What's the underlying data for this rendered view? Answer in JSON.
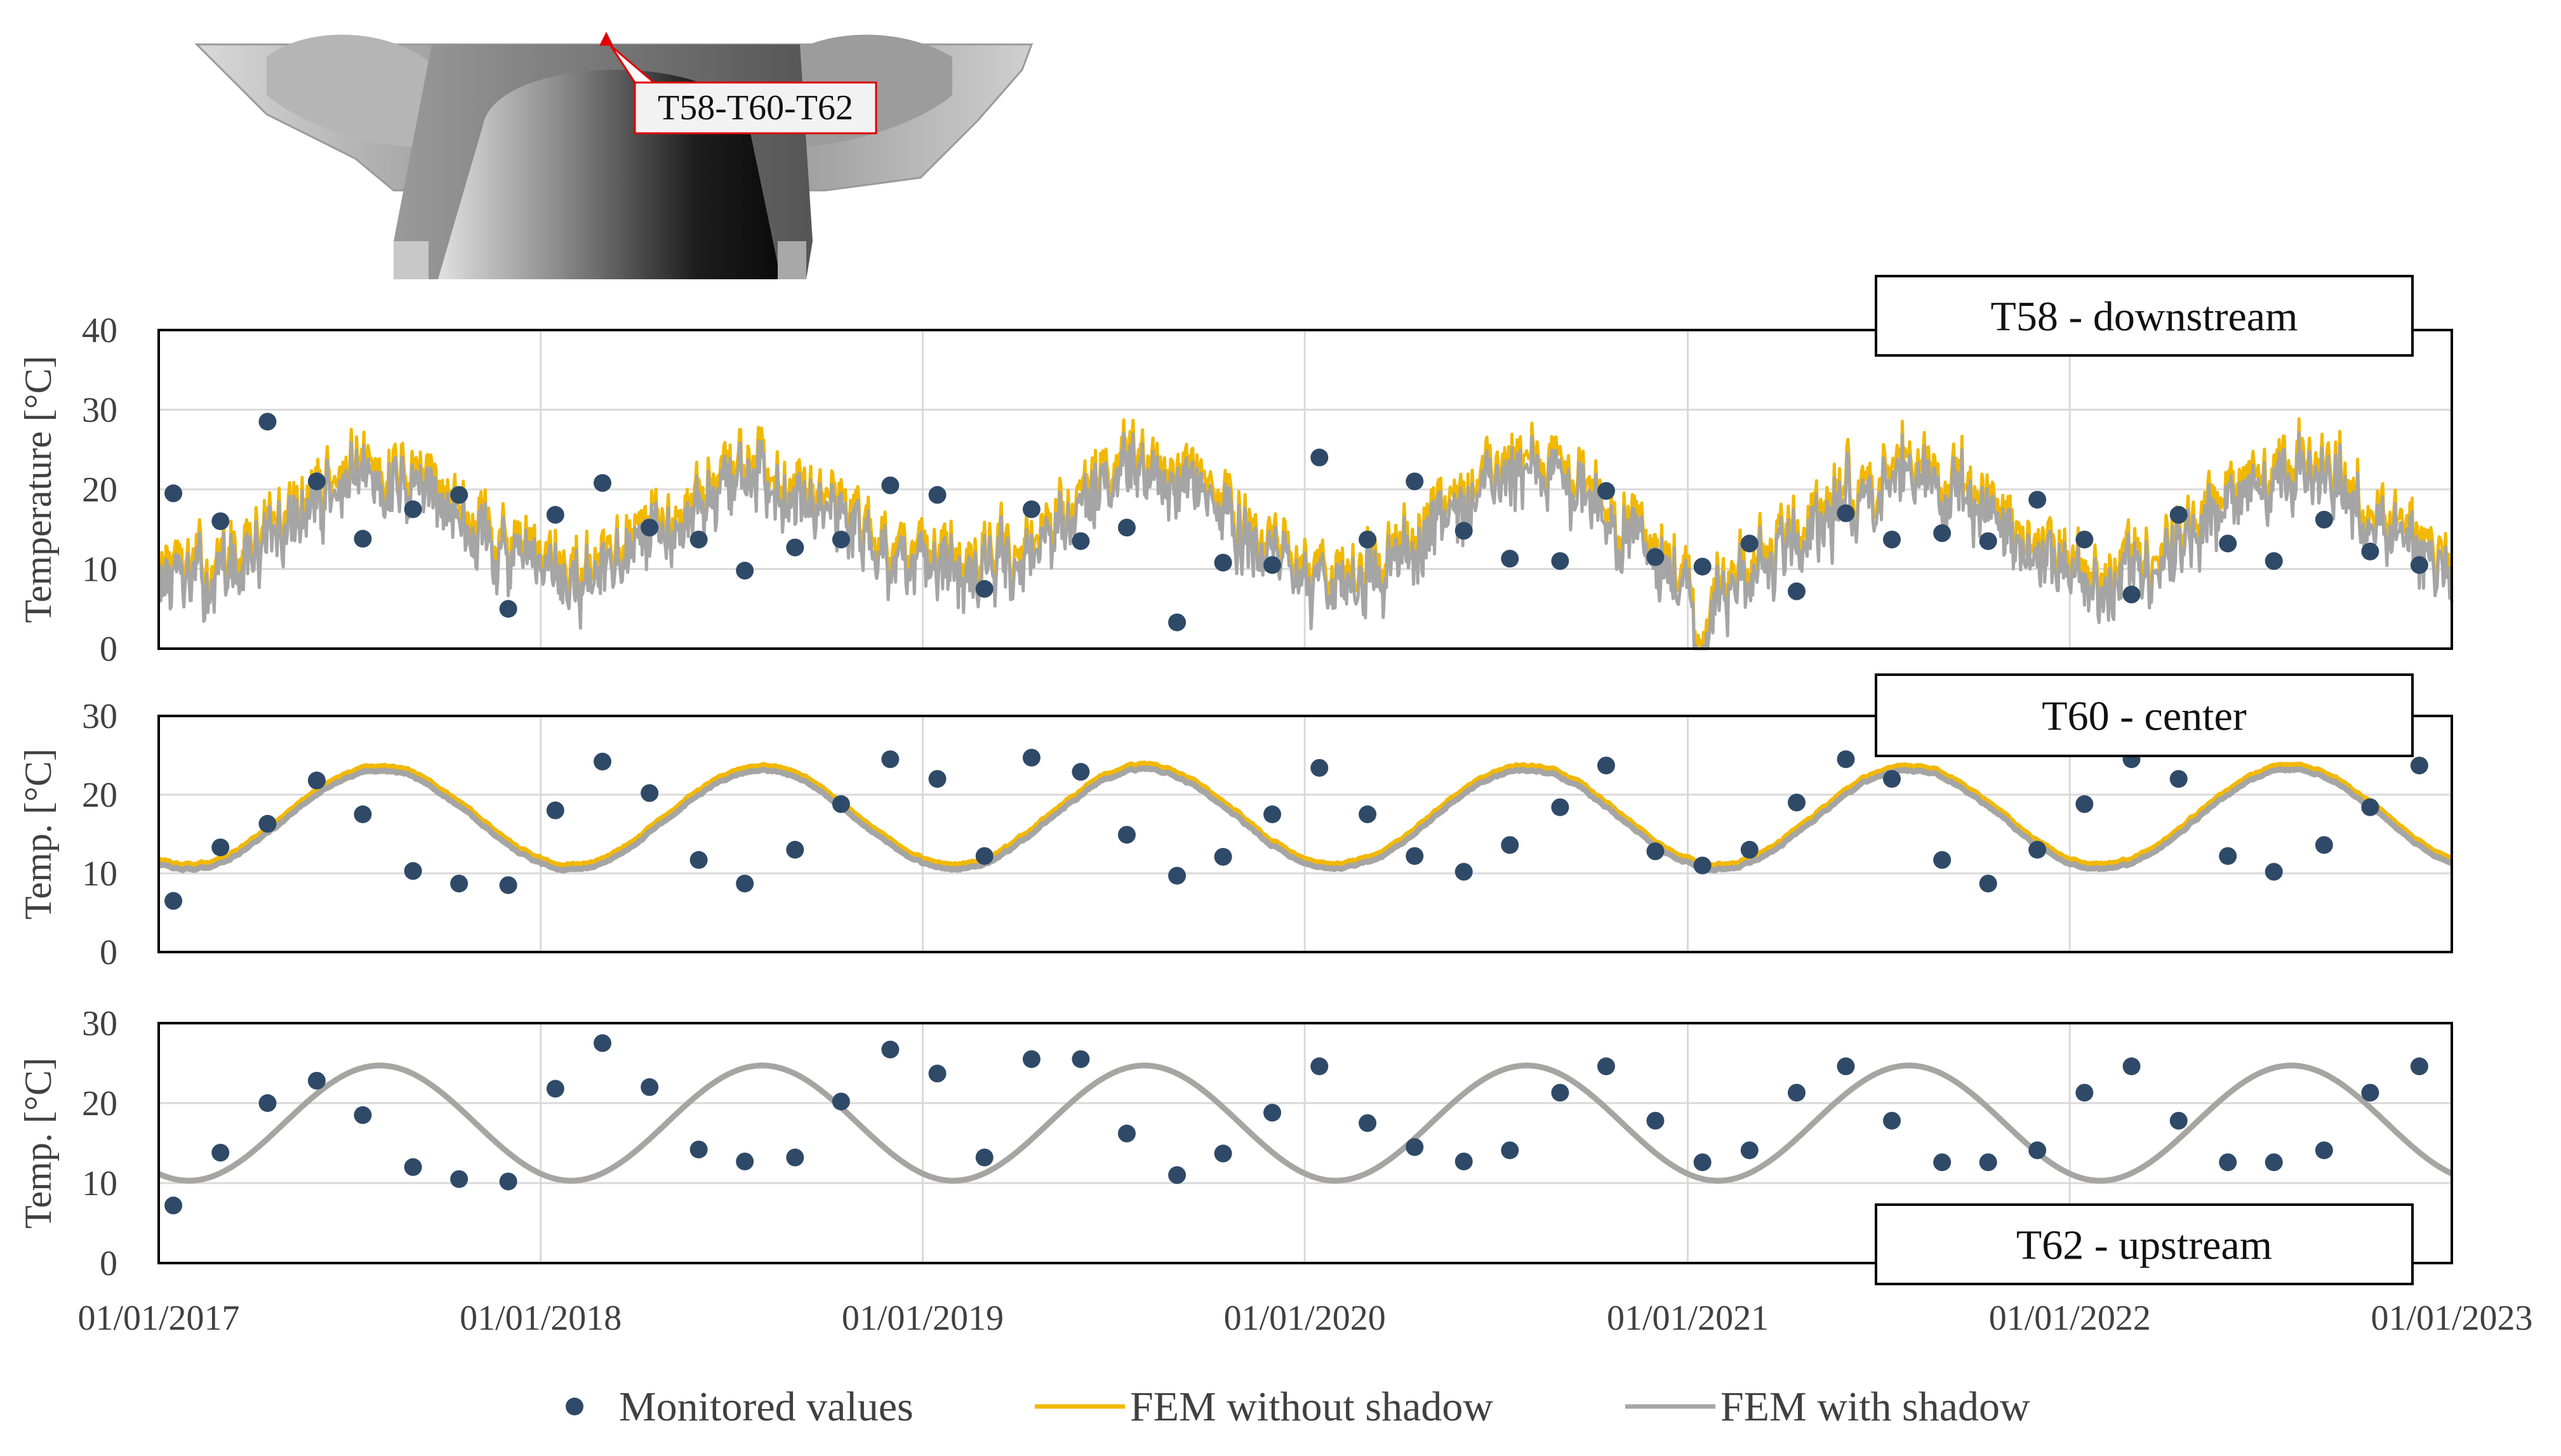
{
  "figure": {
    "inset": {
      "label": "T58-T60-T62",
      "marker_color": "#e00000"
    },
    "legend": [
      {
        "label": "Monitored values",
        "kind": "marker",
        "color": "#2f4a68"
      },
      {
        "label": "FEM without shadow",
        "kind": "line",
        "color": "#f2b800"
      },
      {
        "label": "FEM with shadow",
        "kind": "line",
        "color": "#a5a5a5"
      }
    ]
  },
  "chart_data": [
    {
      "type": "scatter",
      "title": "T58 - downstream",
      "ylabel": "Temperature [°C]",
      "xlabel": "",
      "ylim": [
        0,
        40
      ],
      "yticks": [
        0,
        10,
        20,
        30,
        40
      ],
      "xlim": [
        "01/01/2017",
        "01/01/2023"
      ],
      "xticks": [],
      "grid": true,
      "series": [
        {
          "name": "Monitored values",
          "x": [
            "2017-01-15",
            "2017-03-01",
            "2017-04-15",
            "2017-06-01",
            "2017-07-15",
            "2017-09-01",
            "2017-10-15",
            "2017-12-01",
            "2018-01-15",
            "2018-03-01",
            "2018-04-15",
            "2018-06-01",
            "2018-07-15",
            "2018-09-01",
            "2018-10-15",
            "2018-12-01",
            "2019-01-15",
            "2019-03-01",
            "2019-04-15",
            "2019-06-01",
            "2019-07-15",
            "2019-09-01",
            "2019-10-15",
            "2019-12-01",
            "2020-01-15",
            "2020-03-01",
            "2020-04-15",
            "2020-06-01",
            "2020-07-15",
            "2020-09-01",
            "2020-10-15",
            "2020-12-01",
            "2021-01-15",
            "2021-03-01",
            "2021-04-15",
            "2021-06-01",
            "2021-07-15",
            "2021-09-01",
            "2021-10-15",
            "2021-12-01",
            "2022-01-15",
            "2022-03-01",
            "2022-04-15",
            "2022-06-01",
            "2022-07-15",
            "2022-09-01",
            "2022-10-15",
            "2022-12-01"
          ],
          "y": [
            19.5,
            16.0,
            28.5,
            21.0,
            13.8,
            17.5,
            19.3,
            5.0,
            16.8,
            20.8,
            15.2,
            13.7,
            9.8,
            12.7,
            13.7,
            20.5,
            19.3,
            7.5,
            17.5,
            13.5,
            15.2,
            3.3,
            10.8,
            10.5,
            24.0,
            13.7,
            21.0,
            14.8,
            11.3,
            11.0,
            19.8,
            11.5,
            10.3,
            13.2,
            7.2,
            17.0,
            13.7,
            14.5,
            13.5,
            18.7,
            13.7,
            6.8,
            16.8,
            13.2,
            11.0,
            16.2,
            12.2,
            10.5
          ]
        },
        {
          "name": "FEM without shadow",
          "type": "line",
          "style": "daily",
          "mean": 15.5,
          "amplitude": 6.5,
          "noise": 6.0,
          "offset": 1.0,
          "min_day": "2021-01-15"
        },
        {
          "name": "FEM with shadow",
          "type": "line",
          "style": "daily",
          "mean": 14.8,
          "amplitude": 6.5,
          "noise": 6.0,
          "offset": 0,
          "min_day": "2021-01-15"
        }
      ]
    },
    {
      "type": "scatter",
      "title": "T60 - center",
      "ylabel": "Temp. [°C]",
      "xlabel": "",
      "ylim": [
        0,
        30
      ],
      "yticks": [
        0,
        10,
        20,
        30
      ],
      "xlim": [
        "01/01/2017",
        "01/01/2023"
      ],
      "xticks": [],
      "grid": true,
      "series": [
        {
          "name": "Monitored values",
          "x": [
            "2017-01-15",
            "2017-03-01",
            "2017-04-15",
            "2017-06-01",
            "2017-07-15",
            "2017-09-01",
            "2017-10-15",
            "2017-12-01",
            "2018-01-15",
            "2018-03-01",
            "2018-04-15",
            "2018-06-01",
            "2018-07-15",
            "2018-09-01",
            "2018-10-15",
            "2018-12-01",
            "2019-01-15",
            "2019-03-01",
            "2019-04-15",
            "2019-06-01",
            "2019-07-15",
            "2019-09-01",
            "2019-10-15",
            "2019-12-01",
            "2020-01-15",
            "2020-03-01",
            "2020-04-15",
            "2020-06-01",
            "2020-07-15",
            "2020-09-01",
            "2020-10-15",
            "2020-12-01",
            "2021-01-15",
            "2021-03-01",
            "2021-04-15",
            "2021-06-01",
            "2021-07-15",
            "2021-09-01",
            "2021-10-15",
            "2021-12-01",
            "2022-01-15",
            "2022-03-01",
            "2022-04-15",
            "2022-06-01",
            "2022-07-15",
            "2022-09-01",
            "2022-10-15",
            "2022-12-01"
          ],
          "y": [
            6.5,
            13.3,
            16.3,
            21.8,
            17.5,
            10.3,
            8.7,
            8.5,
            18.0,
            24.2,
            20.2,
            11.7,
            8.7,
            13.0,
            18.8,
            24.5,
            22.0,
            12.2,
            24.7,
            22.9,
            14.9,
            9.7,
            12.1,
            17.5,
            23.4,
            17.5,
            12.2,
            10.2,
            13.6,
            18.4,
            23.7,
            12.8,
            11.0,
            13.0,
            19.0,
            24.5,
            22.0,
            11.7,
            8.7,
            13.0,
            18.8,
            24.5,
            22.0,
            12.2,
            10.2,
            13.6,
            18.4,
            23.7
          ]
        },
        {
          "name": "FEM without shadow",
          "type": "line",
          "style": "smooth",
          "mean": 17.0,
          "amplitude": 6.3,
          "noise": 0.5,
          "offset": 0.4
        },
        {
          "name": "FEM with shadow",
          "type": "line",
          "style": "smooth",
          "mean": 16.8,
          "amplitude": 6.3,
          "noise": 0.5,
          "offset": 0
        }
      ]
    },
    {
      "type": "scatter",
      "title": "T62 - upstream",
      "ylabel": "Temp. [°C]",
      "xlabel": "",
      "ylim": [
        0,
        30
      ],
      "yticks": [
        0,
        10,
        20,
        30
      ],
      "xlim": [
        "01/01/2017",
        "01/01/2023"
      ],
      "xticks": [
        "01/01/2017",
        "01/01/2018",
        "01/01/2019",
        "01/01/2020",
        "01/01/2021",
        "01/01/2022",
        "01/01/2023"
      ],
      "grid": true,
      "series": [
        {
          "name": "Monitored values",
          "x": [
            "2017-01-15",
            "2017-03-01",
            "2017-04-15",
            "2017-06-01",
            "2017-07-15",
            "2017-09-01",
            "2017-10-15",
            "2017-12-01",
            "2018-01-15",
            "2018-03-01",
            "2018-04-15",
            "2018-06-01",
            "2018-07-15",
            "2018-09-01",
            "2018-10-15",
            "2018-12-01",
            "2019-01-15",
            "2019-03-01",
            "2019-04-15",
            "2019-06-01",
            "2019-07-15",
            "2019-09-01",
            "2019-10-15",
            "2019-12-01",
            "2020-01-15",
            "2020-03-01",
            "2020-04-15",
            "2020-06-01",
            "2020-07-15",
            "2020-09-01",
            "2020-10-15",
            "2020-12-01",
            "2021-01-15",
            "2021-03-01",
            "2021-04-15",
            "2021-06-01",
            "2021-07-15",
            "2021-09-01",
            "2021-10-15",
            "2021-12-01",
            "2022-01-15",
            "2022-03-01",
            "2022-04-15",
            "2022-06-01",
            "2022-07-15",
            "2022-09-01",
            "2022-10-15",
            "2022-12-01"
          ],
          "y": [
            7.2,
            13.8,
            20.0,
            22.8,
            18.5,
            12.0,
            10.5,
            10.2,
            21.8,
            27.5,
            22.0,
            14.2,
            12.7,
            13.2,
            20.2,
            26.7,
            23.7,
            13.2,
            25.5,
            25.5,
            16.2,
            11.0,
            13.7,
            18.8,
            24.6,
            17.5,
            14.5,
            12.7,
            14.1,
            21.3,
            24.6,
            17.8,
            12.6,
            14.1,
            21.3,
            24.6,
            17.8,
            12.6,
            12.6,
            14.1,
            21.3,
            24.6,
            17.8,
            12.6,
            12.6,
            14.1,
            21.3,
            24.6
          ]
        },
        {
          "name": "FEM without shadow",
          "type": "line",
          "style": "sine",
          "mean": 17.5,
          "amplitude": 7.2,
          "noise": 0,
          "offset": 0
        },
        {
          "name": "FEM with shadow",
          "type": "line",
          "style": "sine",
          "mean": 17.5,
          "amplitude": 7.2,
          "noise": 0,
          "offset": 0
        }
      ]
    }
  ]
}
